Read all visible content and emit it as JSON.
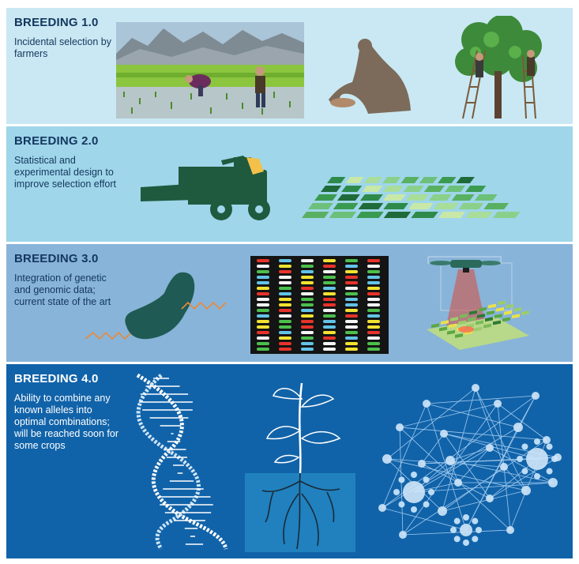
{
  "panels": [
    {
      "title": "BREEDING 1.0",
      "description": "Incidental selection by farmers"
    },
    {
      "title": "BREEDING 2.0",
      "description": "Statistical and experimental design to improve selection effort"
    },
    {
      "title": "BREEDING 3.0",
      "description": "Integration of genetic and genomic data; current state of the art"
    },
    {
      "title": "BREEDING 4.0",
      "description": "Ability to combine any known alleles into optimal combinations; will be reached soon for some crops"
    }
  ],
  "colors": {
    "panel1": "#c9e8f3",
    "panel2": "#9fd6ea",
    "panel3": "#88b4d9",
    "panel4": "#1163a9",
    "title_text": "#14375e",
    "machine_green": "#1f5a3f",
    "network_light": "#cfe6f8"
  },
  "illustrations": {
    "panel1": [
      "rice-paddy-farmers-illustration",
      "kneeling-farmer-illustration",
      "tree-harvest-ladders-illustration"
    ],
    "panel2": [
      "combine-harvester-icon",
      "trial-plots-illustration"
    ],
    "panel3": [
      "seed-sequence-illustration",
      "genotype-matrix-illustration",
      "drone-phenotyping-illustration"
    ],
    "panel4": [
      "dna-helix-illustration",
      "seedling-roots-illustration",
      "allele-network-illustration"
    ]
  }
}
